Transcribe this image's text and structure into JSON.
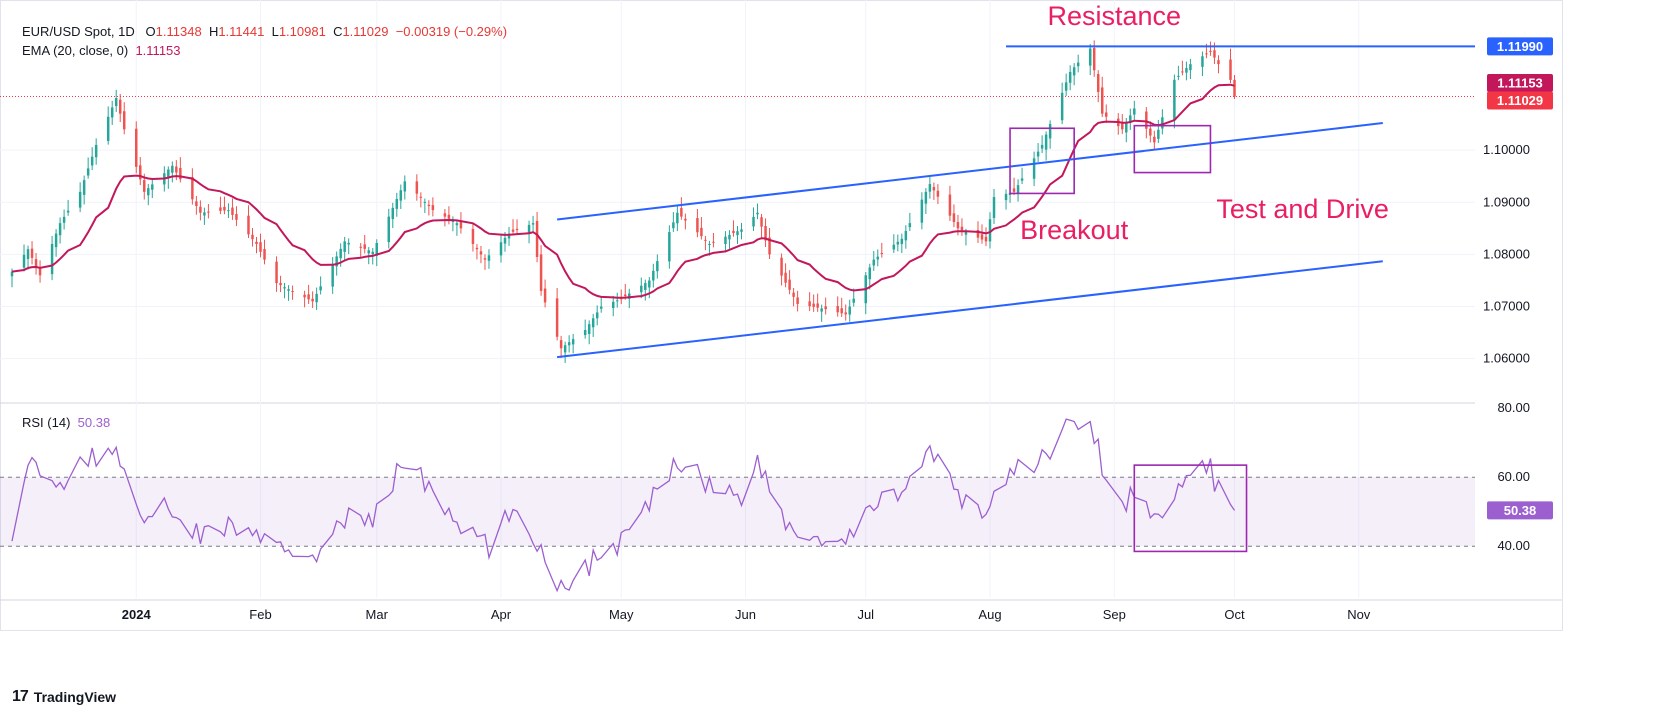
{
  "header": {
    "symbol": "EUR/USD Spot, 1D",
    "open_label": "O",
    "open": "1.11348",
    "high_label": "H",
    "high": "1.11441",
    "low_label": "L",
    "low": "1.10981",
    "close_label": "C",
    "close": "1.11029",
    "change": "−0.00319 (−0.29%)",
    "ema_label": "EMA (20, close, 0)",
    "ema_value": "1.11153",
    "rsi_label": "RSI (14)",
    "rsi_value": "50.38"
  },
  "brand": "TradingView",
  "brand_mark": "17",
  "colors": {
    "up": "#26a69a",
    "down": "#ef5350",
    "ema": "#c2185b",
    "trend": "#2962ff",
    "rsi": "#9c5fd0",
    "annotation": "#e91e63",
    "box": "#9c27b0"
  },
  "chart_data": [
    {
      "type": "candlestick",
      "title": "EUR/USD Spot, 1D",
      "x_ticks": [
        {
          "label": "2024",
          "date": "2024-01-01"
        },
        {
          "label": "Feb",
          "date": "2024-02-01"
        },
        {
          "label": "Mar",
          "date": "2024-03-01"
        },
        {
          "label": "Apr",
          "date": "2024-04-01"
        },
        {
          "label": "May",
          "date": "2024-05-01"
        },
        {
          "label": "Jun",
          "date": "2024-06-01"
        },
        {
          "label": "Jul",
          "date": "2024-07-01"
        },
        {
          "label": "Aug",
          "date": "2024-08-01"
        },
        {
          "label": "Sep",
          "date": "2024-09-01"
        },
        {
          "label": "Oct",
          "date": "2024-10-01"
        },
        {
          "label": "Nov",
          "date": "2024-11-01"
        }
      ],
      "y_ticks": [
        "1.06000",
        "1.07000",
        "1.08000",
        "1.09000",
        "1.10000"
      ],
      "ylim": [
        1.0515,
        1.1265
      ],
      "x_range": [
        "2023-12-01",
        "2024-11-30"
      ],
      "price_markers": [
        {
          "label": "1.11990",
          "value": 1.1199,
          "color": "#2962ff"
        },
        {
          "label": "1.11153",
          "value": 1.11153,
          "color": "#c2185b"
        },
        {
          "label": "1.11029",
          "value": 1.11029,
          "color": "#f23645"
        }
      ],
      "last_price": 1.11029,
      "closes_anchor": [
        [
          "2023-12-01",
          1.0767
        ],
        [
          "2023-12-05",
          1.081
        ],
        [
          "2023-12-08",
          1.076
        ],
        [
          "2023-12-13",
          1.086
        ],
        [
          "2023-12-18",
          1.092
        ],
        [
          "2023-12-22",
          1.101
        ],
        [
          "2023-12-27",
          1.11
        ],
        [
          "2023-12-29",
          1.104
        ],
        [
          "2024-01-03",
          1.092
        ],
        [
          "2024-01-10",
          1.097
        ],
        [
          "2024-01-17",
          1.088
        ],
        [
          "2024-01-24",
          1.0885
        ],
        [
          "2024-01-31",
          1.082
        ],
        [
          "2024-02-05",
          1.0745
        ],
        [
          "2024-02-14",
          1.071
        ],
        [
          "2024-02-22",
          1.0825
        ],
        [
          "2024-02-29",
          1.0805
        ],
        [
          "2024-03-08",
          1.094
        ],
        [
          "2024-03-15",
          1.0885
        ],
        [
          "2024-03-21",
          1.086
        ],
        [
          "2024-03-28",
          1.079
        ],
        [
          "2024-04-03",
          1.084
        ],
        [
          "2024-04-09",
          1.086
        ],
        [
          "2024-04-11",
          1.073
        ],
        [
          "2024-04-16",
          1.062
        ],
        [
          "2024-04-22",
          1.0655
        ],
        [
          "2024-04-26",
          1.07
        ],
        [
          "2024-05-01",
          1.0715
        ],
        [
          "2024-05-08",
          1.075
        ],
        [
          "2024-05-15",
          1.088
        ],
        [
          "2024-05-23",
          1.082
        ],
        [
          "2024-05-31",
          1.0848
        ],
        [
          "2024-06-04",
          1.088
        ],
        [
          "2024-06-07",
          1.08
        ],
        [
          "2024-06-14",
          1.0705
        ],
        [
          "2024-06-21",
          1.0695
        ],
        [
          "2024-06-26",
          1.0685
        ],
        [
          "2024-07-03",
          1.079
        ],
        [
          "2024-07-10",
          1.083
        ],
        [
          "2024-07-17",
          1.0935
        ],
        [
          "2024-07-24",
          1.085
        ],
        [
          "2024-07-31",
          1.0825
        ],
        [
          "2024-08-02",
          1.091
        ],
        [
          "2024-08-07",
          1.092
        ],
        [
          "2024-08-14",
          1.101
        ],
        [
          "2024-08-21",
          1.115
        ],
        [
          "2024-08-26",
          1.1195
        ],
        [
          "2024-08-29",
          1.107
        ],
        [
          "2024-09-03",
          1.104
        ],
        [
          "2024-09-06",
          1.108
        ],
        [
          "2024-09-11",
          1.1015
        ],
        [
          "2024-09-16",
          1.1135
        ],
        [
          "2024-09-20",
          1.1165
        ],
        [
          "2024-09-25",
          1.119
        ],
        [
          "2024-09-27",
          1.1165
        ],
        [
          "2024-09-30",
          1.11348
        ],
        [
          "2024-10-01",
          1.11029
        ]
      ],
      "ema_label": "EMA (20, close, 0)",
      "ema_last": 1.11153,
      "last_bar": {
        "date": "2024-10-01",
        "open": 1.11348,
        "high": 1.11441,
        "low": 1.10981,
        "close": 1.11029
      },
      "trendlines": [
        {
          "name": "resistance",
          "from": [
            "2024-08-05",
            1.1199
          ],
          "to": [
            "2024-11-30",
            1.1199
          ]
        },
        {
          "name": "channel-upper",
          "from": [
            "2024-04-15",
            1.0867
          ],
          "to": [
            "2024-11-07",
            1.1052
          ]
        },
        {
          "name": "channel-lower",
          "from": [
            "2024-04-15",
            1.0603
          ],
          "to": [
            "2024-11-07",
            1.0787
          ]
        }
      ],
      "boxes": [
        {
          "name": "breakout-box",
          "from": [
            "2024-08-06",
            1.0917
          ],
          "to": [
            "2024-08-22",
            1.1042
          ]
        },
        {
          "name": "test-box",
          "from": [
            "2024-09-06",
            1.0957
          ],
          "to": [
            "2024-09-25",
            1.1047
          ]
        }
      ],
      "annotations": [
        {
          "text": "Resistance",
          "at": [
            "2024-09-01",
            1.124
          ]
        },
        {
          "text": "Breakout",
          "at": [
            "2024-08-22",
            1.083
          ]
        },
        {
          "text": "Test and Drive",
          "at": [
            "2024-10-18",
            1.087
          ]
        }
      ]
    },
    {
      "type": "line",
      "title": "RSI (14)",
      "y_ticks": [
        "40.00",
        "60.00",
        "80.00"
      ],
      "ylim": [
        25,
        81.5
      ],
      "band": [
        40,
        60
      ],
      "last_value": 50.38,
      "values_anchor": [
        [
          "2023-12-01",
          45
        ],
        [
          "2023-12-06",
          65
        ],
        [
          "2023-12-11",
          56
        ],
        [
          "2023-12-18",
          64
        ],
        [
          "2023-12-27",
          68
        ],
        [
          "2024-01-02",
          50
        ],
        [
          "2024-01-10",
          51
        ],
        [
          "2024-01-17",
          43
        ],
        [
          "2024-01-24",
          46
        ],
        [
          "2024-01-31",
          43
        ],
        [
          "2024-02-08",
          37
        ],
        [
          "2024-02-16",
          39
        ],
        [
          "2024-02-23",
          48
        ],
        [
          "2024-03-01",
          49
        ],
        [
          "2024-03-08",
          66
        ],
        [
          "2024-03-15",
          55
        ],
        [
          "2024-03-22",
          45
        ],
        [
          "2024-03-29",
          40
        ],
        [
          "2024-04-05",
          52
        ],
        [
          "2024-04-12",
          37
        ],
        [
          "2024-04-16",
          28
        ],
        [
          "2024-04-22",
          34
        ],
        [
          "2024-05-01",
          41
        ],
        [
          "2024-05-08",
          52
        ],
        [
          "2024-05-15",
          66
        ],
        [
          "2024-05-23",
          58
        ],
        [
          "2024-05-31",
          55
        ],
        [
          "2024-06-04",
          64
        ],
        [
          "2024-06-11",
          46
        ],
        [
          "2024-06-18",
          42
        ],
        [
          "2024-06-26",
          40
        ],
        [
          "2024-07-03",
          52
        ],
        [
          "2024-07-11",
          58
        ],
        [
          "2024-07-17",
          67
        ],
        [
          "2024-07-24",
          54
        ],
        [
          "2024-07-31",
          50
        ],
        [
          "2024-08-02",
          55
        ],
        [
          "2024-08-07",
          62
        ],
        [
          "2024-08-13",
          64
        ],
        [
          "2024-08-20",
          75
        ],
        [
          "2024-08-26",
          76
        ],
        [
          "2024-08-30",
          60
        ],
        [
          "2024-09-03",
          52
        ],
        [
          "2024-09-06",
          56
        ],
        [
          "2024-09-11",
          48
        ],
        [
          "2024-09-16",
          57
        ],
        [
          "2024-09-20",
          61
        ],
        [
          "2024-09-25",
          62
        ],
        [
          "2024-09-27",
          56
        ],
        [
          "2024-09-30",
          54
        ],
        [
          "2024-10-01",
          50.38
        ]
      ],
      "boxes": [
        {
          "name": "rsi-box",
          "from": [
            "2024-09-06",
            38.5
          ],
          "to": [
            "2024-10-04",
            63.5
          ]
        }
      ]
    }
  ]
}
